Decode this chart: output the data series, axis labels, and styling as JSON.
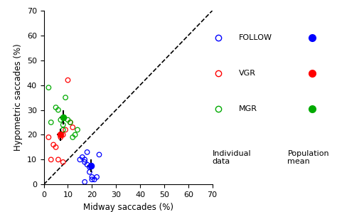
{
  "xlim": [
    0,
    70
  ],
  "ylim": [
    0,
    70
  ],
  "xticks": [
    0,
    10,
    20,
    30,
    40,
    50,
    60,
    70
  ],
  "yticks": [
    0,
    10,
    20,
    30,
    40,
    50,
    60,
    70
  ],
  "xlabel": "Midway saccades (%)",
  "ylabel": "Hypometric saccades (%)",
  "follow_x": [
    15,
    16,
    17,
    17,
    18,
    18,
    19,
    19,
    20,
    20,
    21,
    22,
    23,
    17
  ],
  "follow_y": [
    10,
    11,
    10,
    9,
    13,
    8,
    7,
    5,
    3,
    2,
    2,
    3,
    12,
    1
  ],
  "follow_mean_x": [
    19.5
  ],
  "follow_mean_y": [
    7.5
  ],
  "follow_mean_xerr": [
    1.5
  ],
  "follow_mean_yerr": [
    2.5
  ],
  "vgr_x": [
    2,
    3,
    4,
    5,
    6,
    7,
    7,
    8,
    8,
    9,
    10,
    11,
    12
  ],
  "vgr_y": [
    19,
    10,
    16,
    15,
    10,
    19,
    20,
    9,
    20,
    22,
    42,
    25,
    23
  ],
  "vgr_mean_x": [
    7
  ],
  "vgr_mean_y": [
    20
  ],
  "vgr_mean_xerr": [
    1.5
  ],
  "vgr_mean_yerr": [
    2.5
  ],
  "mgr_x": [
    2,
    3,
    5,
    6,
    7,
    8,
    8,
    9,
    10,
    11,
    12,
    13,
    14
  ],
  "mgr_y": [
    39,
    25,
    31,
    30,
    26,
    24,
    22,
    35,
    26,
    25,
    19,
    20,
    22
  ],
  "mgr_mean_x": [
    8
  ],
  "mgr_mean_y": [
    27
  ],
  "mgr_mean_xerr": [
    1.5
  ],
  "mgr_mean_yerr": [
    3.0
  ],
  "follow_color": "#0000ff",
  "vgr_color": "#ff0000",
  "mgr_color": "#00aa00",
  "mean_marker_color": "#000000",
  "background_color": "#ffffff",
  "legend_labels": [
    "FOLLOW",
    "VGR",
    "MGR"
  ],
  "legend_col1_header": "Individual\ndata",
  "legend_col2_header": "Population\nmean"
}
